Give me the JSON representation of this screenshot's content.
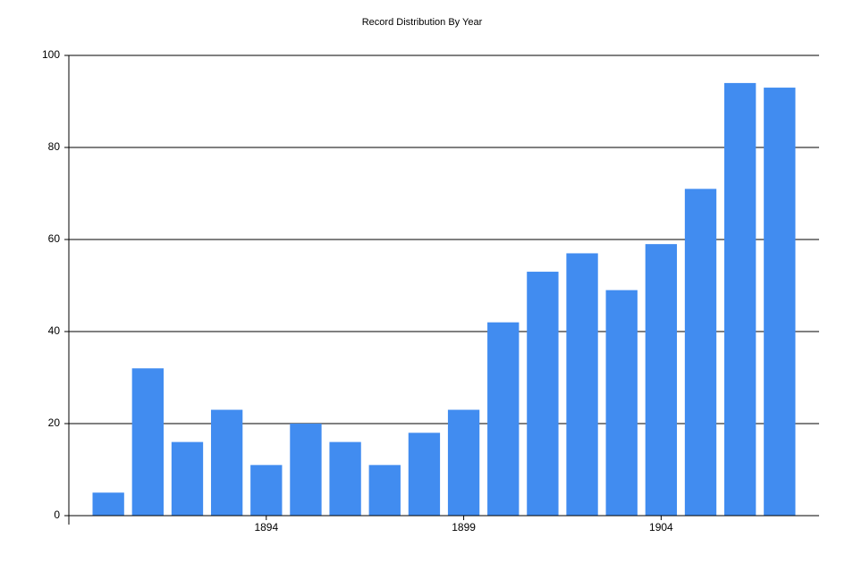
{
  "chart_data": {
    "type": "bar",
    "title": "Record Distribution By Year",
    "x": [
      1890,
      1891,
      1892,
      1893,
      1894,
      1895,
      1896,
      1897,
      1898,
      1899,
      1900,
      1901,
      1902,
      1903,
      1904,
      1905,
      1906,
      1907
    ],
    "values": [
      5,
      32,
      16,
      23,
      11,
      20,
      16,
      11,
      18,
      23,
      42,
      53,
      57,
      49,
      59,
      71,
      94,
      93
    ],
    "color": "#418cf0",
    "xlim": [
      1889,
      1908
    ],
    "xticks": [
      1894,
      1899,
      1904
    ],
    "ylim": [
      0,
      100
    ],
    "yticks": [
      0,
      20,
      40,
      60,
      80,
      100
    ],
    "grid": true
  }
}
